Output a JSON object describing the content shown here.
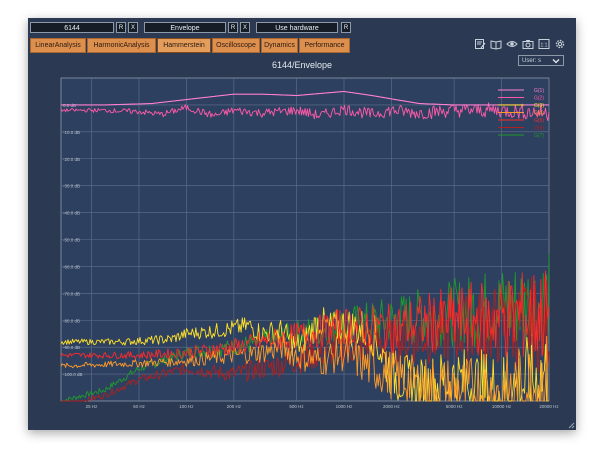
{
  "toolbar": {
    "device_selector": "6144",
    "mode_selector": "Envelope",
    "source_selector": "Use hardware",
    "btn_r": "R",
    "btn_x": "X"
  },
  "tabs": [
    "LinearAnalysis",
    "HarmonicAnalysis",
    "Hammerstein",
    "Oscilloscope",
    "Dynamics",
    "Performance"
  ],
  "active_tab": "Hammerstein",
  "icons": [
    "edit-note-icon",
    "book-icon",
    "eye-icon",
    "camera-icon",
    "one-to-one-icon",
    "gear-icon"
  ],
  "view_dropdown": "User: s",
  "chart_data": {
    "type": "line",
    "title": "6144/Envelope",
    "x_scale": "log",
    "xlim": [
      16,
      20000
    ],
    "x_tick_labels": [
      "25 Hz",
      "50 Hz",
      "100 Hz",
      "200 Hz",
      "500 Hz",
      "1000 Hz",
      "2000 Hz",
      "5000 Hz",
      "10000 Hz",
      "20000 Hz"
    ],
    "x_ticks": [
      25,
      50,
      100,
      200,
      500,
      1000,
      2000,
      5000,
      10000,
      20000
    ],
    "y_tick_labels": [
      "0.0 dB",
      "-10.0 dB",
      "-20.0 dB",
      "-30.0 dB",
      "-40.0 dB",
      "-50.0 dB",
      "-60.0 dB",
      "-70.0 dB",
      "-80.0 dB",
      "-90.0 dB",
      "-100.0 dB"
    ],
    "y_ticks": [
      0,
      -10,
      -20,
      -30,
      -40,
      -50,
      -60,
      -70,
      -80,
      -90,
      -100
    ],
    "ylim": [
      -110,
      10
    ],
    "grid": true,
    "legend_position": "top-right",
    "series": [
      {
        "name": "G(1)",
        "color": "#ff7fd0",
        "x": [
          16,
          30,
          60,
          100,
          200,
          300,
          500,
          1000,
          1500,
          3000,
          5000,
          10000,
          20000
        ],
        "y": [
          0,
          0,
          0.5,
          2,
          4,
          4,
          3.5,
          5,
          3.5,
          0.5,
          0,
          0,
          0
        ]
      },
      {
        "name": "G(2)",
        "color": "#ff5aa8",
        "x": [
          16,
          30,
          50,
          70,
          100,
          150,
          200,
          300,
          500,
          700,
          1000,
          1500,
          2000,
          3000,
          5000,
          10000,
          20000
        ],
        "y": [
          -2,
          -2,
          -2.5,
          -3.5,
          -1,
          -4,
          -2,
          -3,
          -2,
          -4,
          -1.5,
          -3.5,
          -2,
          -3,
          -2,
          -2,
          -3
        ]
      },
      {
        "name": "G(3)",
        "color": "#ffe02a",
        "x": [
          16,
          40,
          80,
          100,
          150,
          200,
          250,
          300,
          400,
          500,
          600,
          700,
          800,
          1000,
          1500,
          2000,
          3000,
          5000,
          10000,
          20000
        ],
        "y": [
          -88,
          -88,
          -87,
          -85,
          -84,
          -83,
          -82,
          -85,
          -84,
          -90,
          -85,
          -80,
          -83,
          -82,
          -84,
          -100,
          -105,
          -102,
          -107,
          -100
        ]
      },
      {
        "name": "G(4)",
        "color": "#ff9a2a",
        "x": [
          16,
          50,
          100,
          150,
          200,
          300,
          400,
          500,
          700,
          1000,
          1500,
          2000,
          3000,
          5000,
          10000,
          20000
        ],
        "y": [
          -97,
          -96,
          -95,
          -94,
          -93,
          -92,
          -90,
          -93,
          -95,
          -92,
          -98,
          -100,
          -104,
          -106,
          -108,
          -103
        ]
      },
      {
        "name": "G(5)",
        "color": "#ff2a2a",
        "x": [
          16,
          50,
          100,
          200,
          300,
          500,
          700,
          1000,
          2000,
          3000,
          5000,
          10000,
          20000
        ],
        "y": [
          -93,
          -93,
          -92,
          -90,
          -88,
          -86,
          -84,
          -82,
          -83,
          -81,
          -80,
          -79,
          -78
        ]
      },
      {
        "name": "G(6)",
        "color": "#b02020",
        "x": [
          16,
          30,
          50,
          100,
          200,
          300,
          500,
          700,
          1000,
          2000,
          3000,
          5000,
          10000,
          20000
        ],
        "y": [
          -112,
          -108,
          -102,
          -98,
          -100,
          -98,
          -95,
          -92,
          -90,
          -88,
          -86,
          -84,
          -82,
          -81
        ]
      },
      {
        "name": "G(7)",
        "color": "#1f9a2c",
        "x": [
          16,
          30,
          50,
          100,
          200,
          300,
          500,
          1000,
          2000,
          5000,
          10000,
          20000
        ],
        "y": [
          -110,
          -106,
          -98,
          -92,
          -90,
          -88,
          -85,
          -82,
          -80,
          -77,
          -75,
          -73
        ]
      }
    ]
  }
}
